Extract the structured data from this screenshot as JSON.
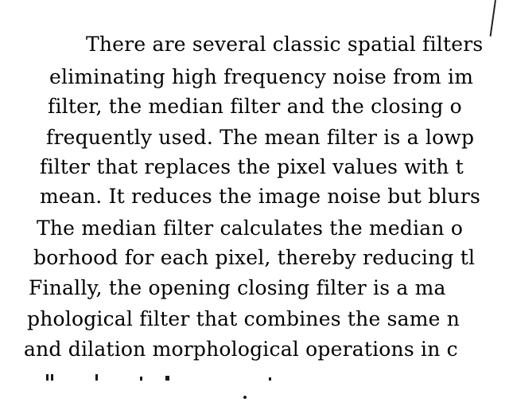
{
  "document": {
    "lines": [
      "There are several classic spatial filters",
      "eliminating high frequency noise from im",
      "filter, the median filter and the closing o",
      "frequently used. The mean filter is a lowp",
      "filter that replaces the pixel values with t",
      "mean. It reduces the image noise but blurs",
      "The median filter calculates the median o",
      "borhood for each pixel, thereby reducing tl",
      "Finally, the opening closing filter is a ma",
      "phological filter that combines the same n",
      "and dilation morphological operations in c"
    ]
  }
}
